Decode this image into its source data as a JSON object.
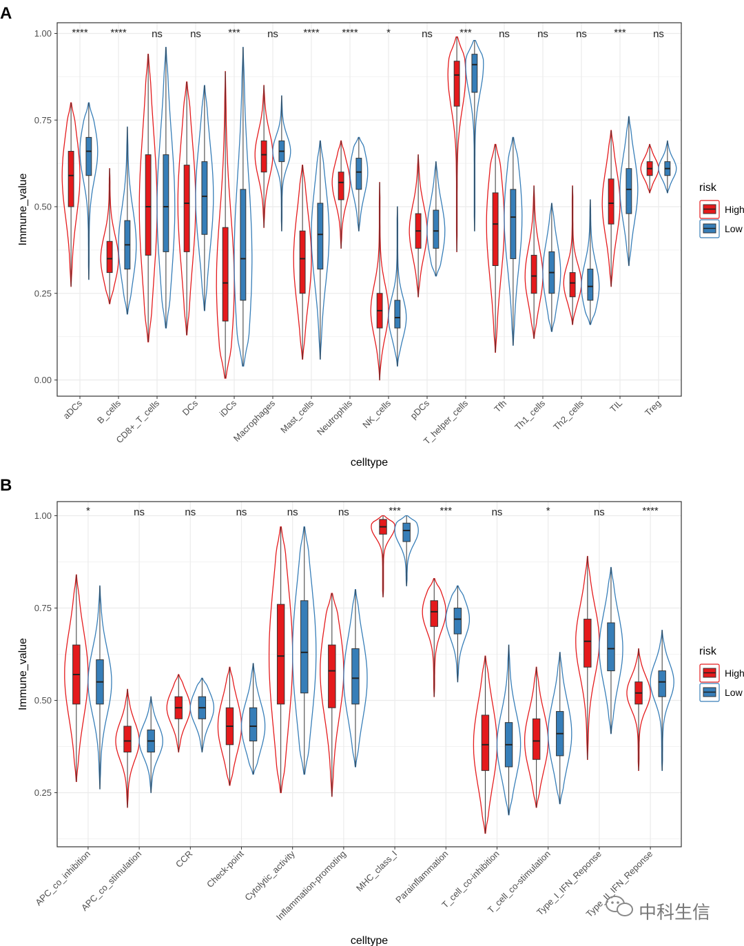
{
  "colors": {
    "High": "#e41a1c",
    "Low": "#377eb8",
    "grid": "#ebebeb",
    "panel_border": "#333333"
  },
  "watermark": {
    "text": "中科生信"
  },
  "chart_data": [
    {
      "panel": "A",
      "type": "violin",
      "xlabel": "celltype",
      "ylabel": "Immune_value",
      "ylim": [
        0,
        1.0
      ],
      "yticks": [
        0.0,
        0.25,
        0.5,
        0.75,
        1.0
      ],
      "ytick_labels": [
        "0.00",
        "0.25",
        "0.50",
        "0.75",
        "1.00"
      ],
      "legend": {
        "title": "risk",
        "entries": [
          "High",
          "Low"
        ],
        "position": "right"
      },
      "categories": [
        "aDCs",
        "B_cells",
        "CD8+_T_cells",
        "DCs",
        "iDCs",
        "Macrophages",
        "Mast_cells",
        "Neutrophils",
        "NK_cells",
        "pDCs",
        "T_helper_cells",
        "Tfh",
        "Th1_cells",
        "Th2_cells",
        "TIL",
        "Treg"
      ],
      "significance": [
        "****",
        "****",
        "ns",
        "ns",
        "***",
        "ns",
        "****",
        "****",
        "*",
        "ns",
        "***",
        "ns",
        "ns",
        "ns",
        "***",
        "ns"
      ],
      "series": [
        {
          "name": "High",
          "min": [
            0.27,
            0.22,
            0.11,
            0.13,
            0.005,
            0.44,
            0.06,
            0.38,
            0.0,
            0.24,
            0.37,
            0.08,
            0.12,
            0.16,
            0.27,
            0.54
          ],
          "q1": [
            0.5,
            0.31,
            0.36,
            0.37,
            0.17,
            0.6,
            0.25,
            0.52,
            0.15,
            0.38,
            0.79,
            0.33,
            0.25,
            0.24,
            0.45,
            0.59
          ],
          "median": [
            0.59,
            0.35,
            0.5,
            0.51,
            0.28,
            0.65,
            0.35,
            0.57,
            0.2,
            0.43,
            0.88,
            0.45,
            0.3,
            0.28,
            0.51,
            0.61
          ],
          "q3": [
            0.66,
            0.4,
            0.65,
            0.62,
            0.44,
            0.69,
            0.43,
            0.6,
            0.25,
            0.48,
            0.92,
            0.54,
            0.36,
            0.31,
            0.58,
            0.63
          ],
          "max": [
            0.8,
            0.61,
            0.94,
            0.86,
            0.89,
            0.85,
            0.62,
            0.69,
            0.57,
            0.65,
            0.99,
            0.68,
            0.56,
            0.56,
            0.72,
            0.68
          ]
        },
        {
          "name": "Low",
          "min": [
            0.29,
            0.19,
            0.15,
            0.2,
            0.04,
            0.43,
            0.06,
            0.43,
            0.04,
            0.3,
            0.43,
            0.1,
            0.14,
            0.16,
            0.33,
            0.54
          ],
          "q1": [
            0.59,
            0.32,
            0.37,
            0.42,
            0.23,
            0.63,
            0.32,
            0.55,
            0.15,
            0.38,
            0.83,
            0.35,
            0.25,
            0.23,
            0.48,
            0.59
          ],
          "median": [
            0.66,
            0.39,
            0.5,
            0.53,
            0.35,
            0.66,
            0.42,
            0.6,
            0.18,
            0.43,
            0.91,
            0.47,
            0.31,
            0.27,
            0.55,
            0.61
          ],
          "q3": [
            0.7,
            0.46,
            0.65,
            0.63,
            0.55,
            0.69,
            0.51,
            0.64,
            0.23,
            0.49,
            0.94,
            0.55,
            0.37,
            0.32,
            0.61,
            0.63
          ],
          "max": [
            0.8,
            0.73,
            0.96,
            0.85,
            0.96,
            0.82,
            0.69,
            0.7,
            0.5,
            0.63,
            0.98,
            0.7,
            0.51,
            0.52,
            0.76,
            0.69
          ]
        }
      ]
    },
    {
      "panel": "B",
      "type": "violin",
      "xlabel": "celltype",
      "ylabel": "Immune_value",
      "ylim": [
        0.12,
        1.0
      ],
      "yticks": [
        0.25,
        0.5,
        0.75,
        1.0
      ],
      "ytick_labels": [
        "0.25",
        "0.50",
        "0.75",
        "1.00"
      ],
      "legend": {
        "title": "risk",
        "entries": [
          "High",
          "Low"
        ],
        "position": "right"
      },
      "categories": [
        "APC_co_inhibition",
        "APC_co_stimulation",
        "CCR",
        "Check-point",
        "Cytolytic_activity",
        "Inflammation-promoting",
        "MHC_class_I",
        "Parainflammation",
        "T_cell_co-inhibition",
        "T_cell_co-stimulation",
        "Type_I_IFN_Reponse",
        "Type_II_IFN_Reponse"
      ],
      "significance": [
        "*",
        "ns",
        "ns",
        "ns",
        "ns",
        "ns",
        "***",
        "***",
        "ns",
        "*",
        "ns",
        "****"
      ],
      "series": [
        {
          "name": "High",
          "min": [
            0.28,
            0.21,
            0.36,
            0.27,
            0.25,
            0.24,
            0.78,
            0.51,
            0.14,
            0.21,
            0.34,
            0.31
          ],
          "q1": [
            0.49,
            0.36,
            0.45,
            0.38,
            0.49,
            0.48,
            0.95,
            0.7,
            0.31,
            0.34,
            0.59,
            0.49
          ],
          "median": [
            0.57,
            0.39,
            0.48,
            0.43,
            0.62,
            0.58,
            0.97,
            0.74,
            0.38,
            0.39,
            0.66,
            0.52
          ],
          "q3": [
            0.65,
            0.43,
            0.51,
            0.48,
            0.76,
            0.65,
            0.99,
            0.77,
            0.46,
            0.45,
            0.72,
            0.55
          ],
          "max": [
            0.84,
            0.53,
            0.57,
            0.59,
            0.97,
            0.79,
            1.0,
            0.83,
            0.62,
            0.59,
            0.89,
            0.64
          ]
        },
        {
          "name": "Low",
          "min": [
            0.26,
            0.25,
            0.36,
            0.3,
            0.3,
            0.32,
            0.81,
            0.55,
            0.19,
            0.22,
            0.41,
            0.31
          ],
          "q1": [
            0.49,
            0.36,
            0.45,
            0.39,
            0.52,
            0.49,
            0.93,
            0.68,
            0.32,
            0.35,
            0.58,
            0.51
          ],
          "median": [
            0.55,
            0.39,
            0.48,
            0.43,
            0.63,
            0.56,
            0.96,
            0.72,
            0.38,
            0.41,
            0.64,
            0.55
          ],
          "q3": [
            0.61,
            0.42,
            0.51,
            0.48,
            0.77,
            0.64,
            0.98,
            0.75,
            0.44,
            0.47,
            0.71,
            0.58
          ],
          "max": [
            0.81,
            0.51,
            0.56,
            0.6,
            0.97,
            0.8,
            1.0,
            0.81,
            0.65,
            0.63,
            0.86,
            0.69
          ]
        }
      ]
    }
  ]
}
